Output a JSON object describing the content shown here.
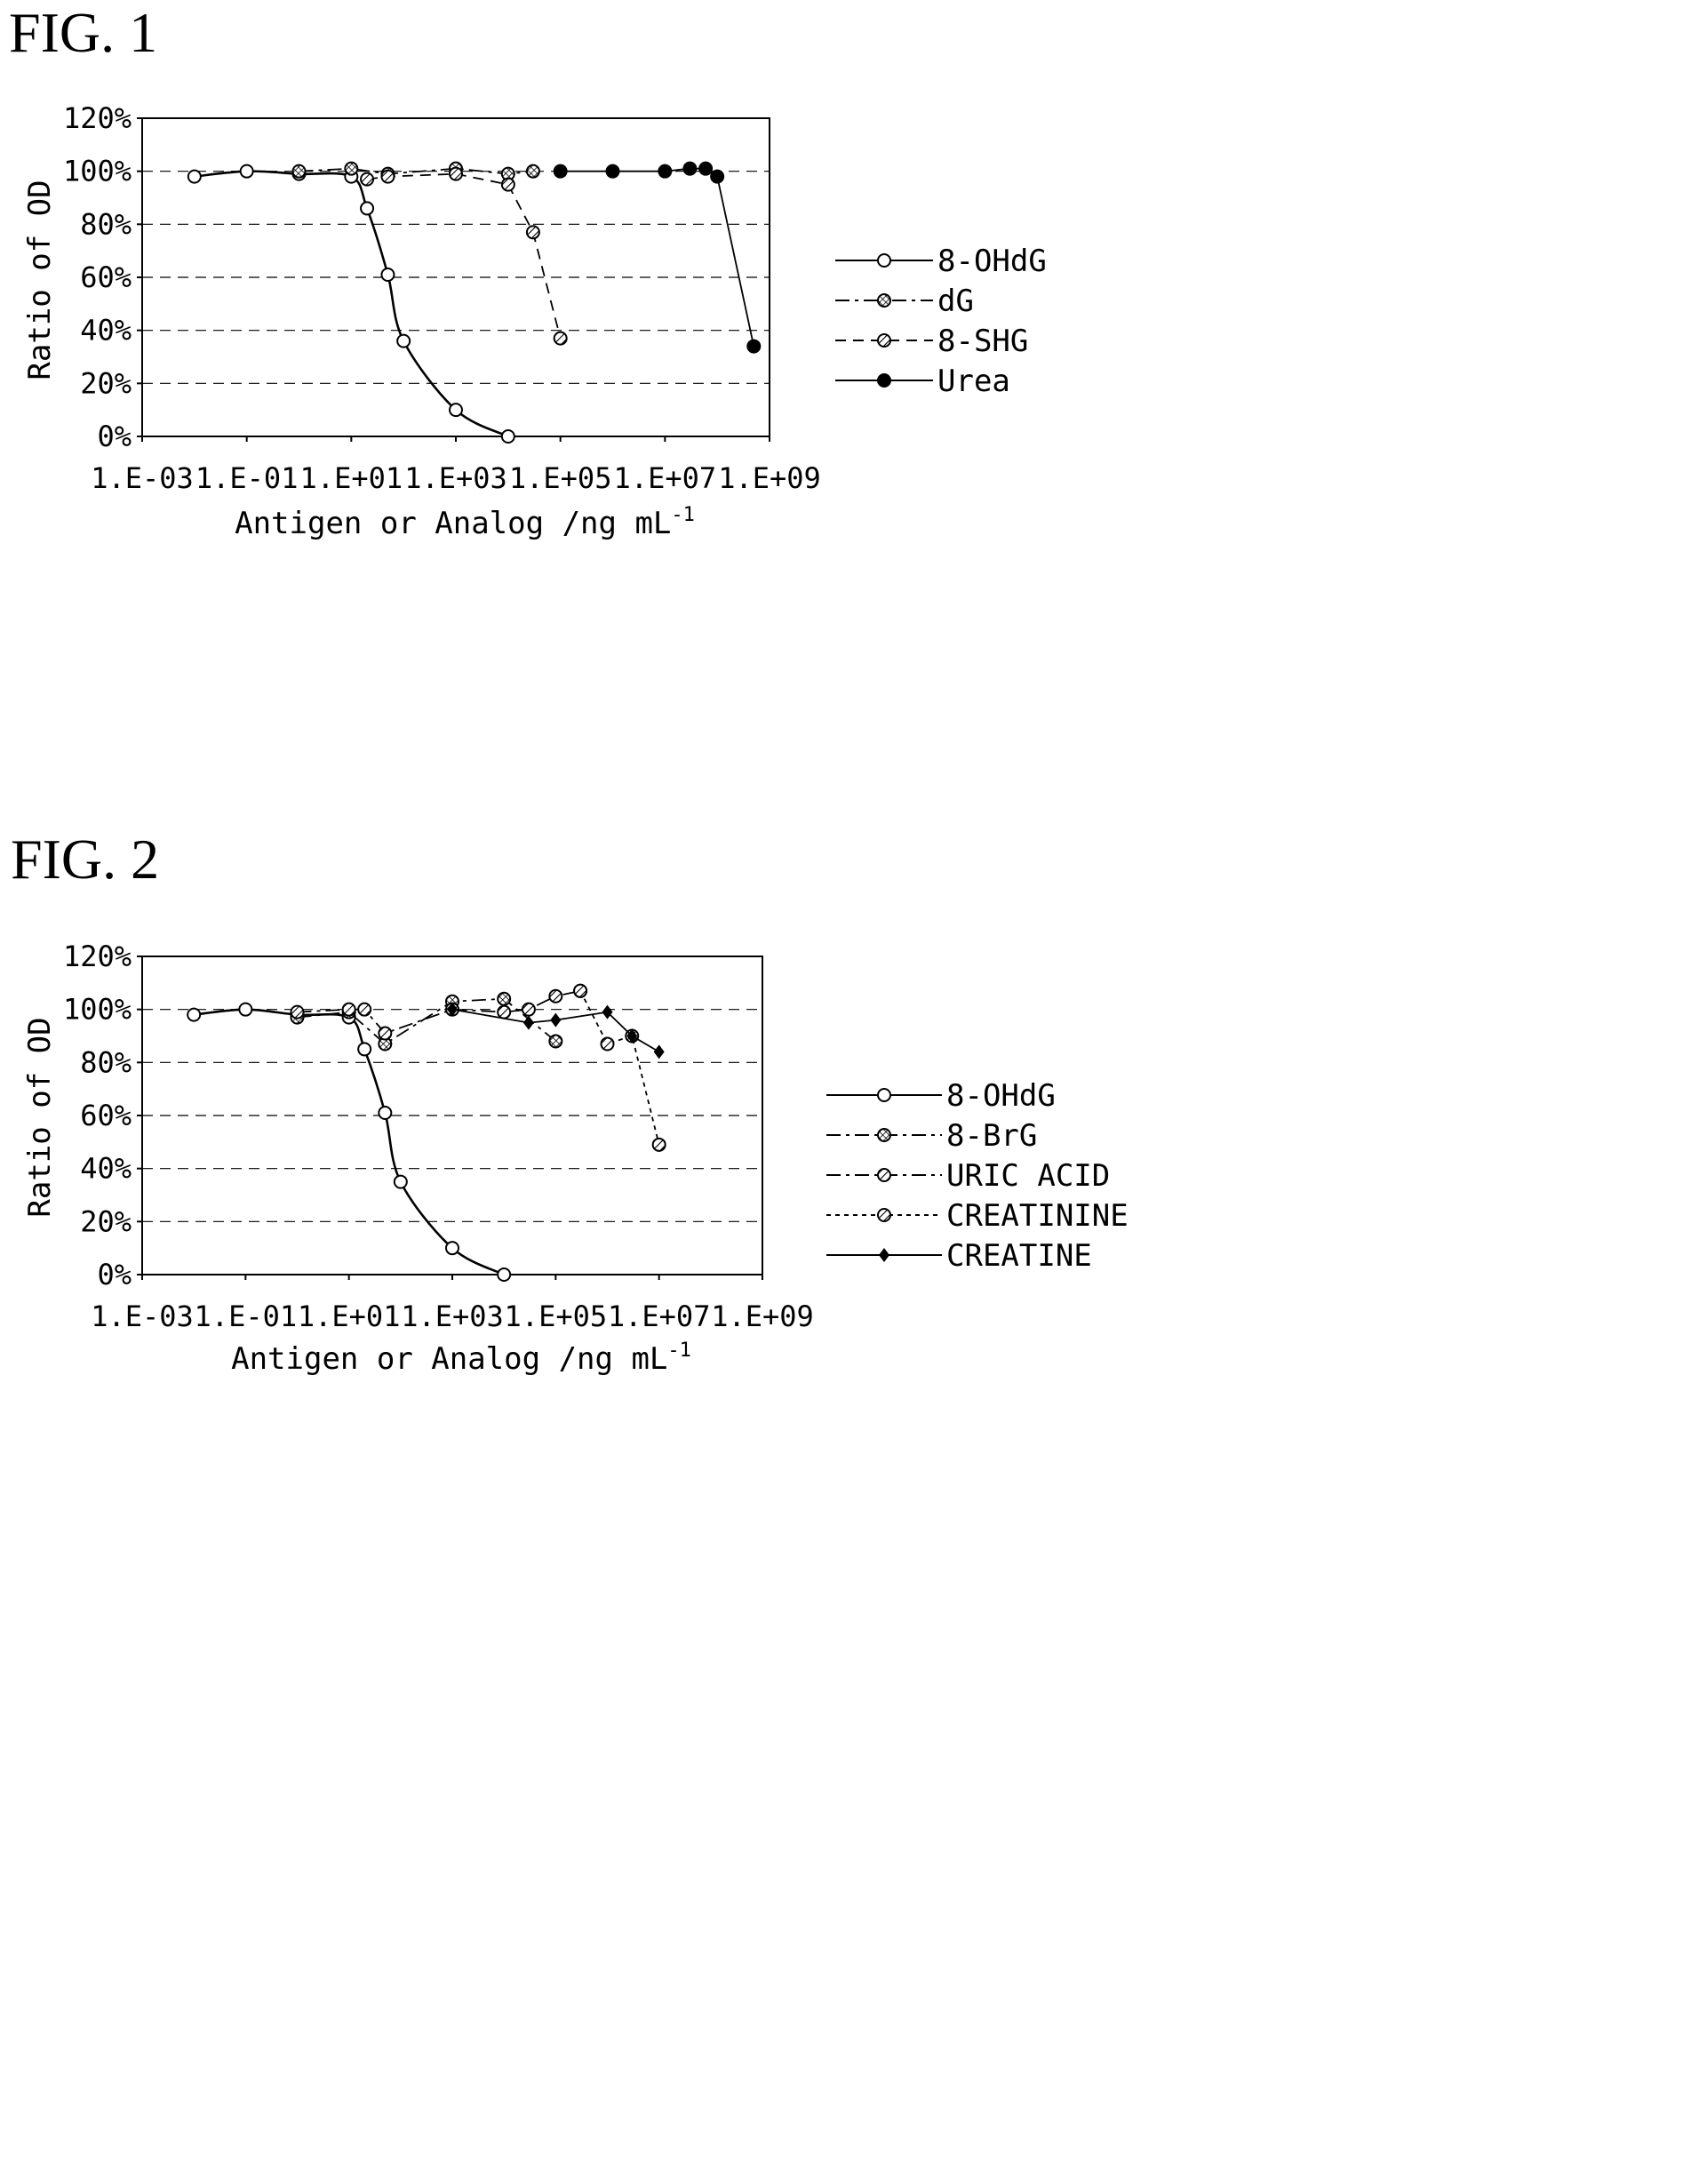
{
  "figures": [
    {
      "label": "FIG. 1"
    },
    {
      "label": "FIG. 2"
    }
  ],
  "chart_data": [
    {
      "type": "scatter",
      "title": "",
      "xlabel": "Antigen or Analog /ng mL",
      "xlabel_sup": "-1",
      "ylabel": "Ratio of OD",
      "xscale": "log",
      "xlim": [
        0.001,
        1000000000
      ],
      "ylim": [
        0,
        120
      ],
      "xticks": [
        "1.E-03",
        "1.E-01",
        "1.E+01",
        "1.E+03",
        "1.E+05",
        "1.E+07",
        "1.E+09"
      ],
      "yticks": [
        "0%",
        "20%",
        "40%",
        "60%",
        "80%",
        "100%",
        "120%"
      ],
      "grid": "horizontal dashed",
      "legend_position": "right",
      "series": [
        {
          "name": "8-OHdG",
          "marker": "open-circle",
          "line": "solid",
          "color": "#000000",
          "x": [
            0.01,
            0.1,
            1,
            10,
            20,
            50,
            100,
            1000,
            10000
          ],
          "y": [
            98,
            100,
            99,
            98,
            86,
            61,
            36,
            10,
            0
          ]
        },
        {
          "name": "dG",
          "marker": "crosshatch-circle",
          "line": "dash-dot",
          "color": "#000000",
          "x": [
            1,
            10,
            50,
            1000,
            10000,
            30000
          ],
          "y": [
            100,
            101,
            99,
            101,
            99,
            100
          ]
        },
        {
          "name": "8-SHG",
          "marker": "hatch-circle",
          "line": "dashed",
          "color": "#000000",
          "x": [
            20,
            50,
            1000,
            10000,
            30000,
            100000
          ],
          "y": [
            97,
            98,
            99,
            95,
            77,
            37
          ]
        },
        {
          "name": "Urea",
          "marker": "filled-circle",
          "line": "solid",
          "color": "#000000",
          "x": [
            100000,
            1000000,
            10000000,
            30000000,
            60000000,
            100000000,
            500000000
          ],
          "y": [
            100,
            100,
            100,
            101,
            101,
            98,
            34
          ]
        }
      ]
    },
    {
      "type": "scatter",
      "title": "",
      "xlabel": "Antigen or Analog /ng mL",
      "xlabel_sup": "-1",
      "ylabel": "Ratio of OD",
      "xscale": "log",
      "xlim": [
        0.001,
        1000000000
      ],
      "ylim": [
        0,
        120
      ],
      "xticks": [
        "1.E-03",
        "1.E-01",
        "1.E+01",
        "1.E+03",
        "1.E+05",
        "1.E+07",
        "1.E+09"
      ],
      "yticks": [
        "0%",
        "20%",
        "40%",
        "60%",
        "80%",
        "100%",
        "120%"
      ],
      "grid": "horizontal dashed",
      "legend_position": "right",
      "series": [
        {
          "name": "8-OHdG",
          "marker": "open-circle",
          "line": "solid",
          "color": "#000000",
          "x": [
            0.01,
            0.1,
            1,
            10,
            20,
            50,
            100,
            1000,
            10000
          ],
          "y": [
            98,
            100,
            98,
            97,
            85,
            61,
            35,
            10,
            0
          ]
        },
        {
          "name": "8-BrG",
          "marker": "crosshatch-circle",
          "line": "dash-dot",
          "color": "#000000",
          "x": [
            1,
            10,
            50,
            1000,
            10000,
            100000
          ],
          "y": [
            97,
            99,
            87,
            103,
            104,
            88
          ]
        },
        {
          "name": "URIC ACID",
          "marker": "hatch-circle",
          "line": "dash-dot",
          "color": "#000000",
          "x": [
            1,
            10,
            20,
            50,
            1000,
            10000,
            30000,
            100000,
            300000
          ],
          "y": [
            99,
            100,
            100,
            91,
            100,
            99,
            100,
            105,
            107
          ]
        },
        {
          "name": "CREATININE",
          "marker": "hatch-circle",
          "line": "dotted",
          "color": "#000000",
          "x": [
            300000,
            1000000,
            3000000,
            10000000
          ],
          "y": [
            107,
            87,
            90,
            49
          ]
        },
        {
          "name": "CREATINE",
          "marker": "filled-diamond",
          "line": "solid",
          "color": "#000000",
          "x": [
            1000,
            30000,
            100000,
            1000000,
            3000000,
            10000000
          ],
          "y": [
            100,
            95,
            96,
            99,
            90,
            84
          ]
        }
      ]
    }
  ]
}
